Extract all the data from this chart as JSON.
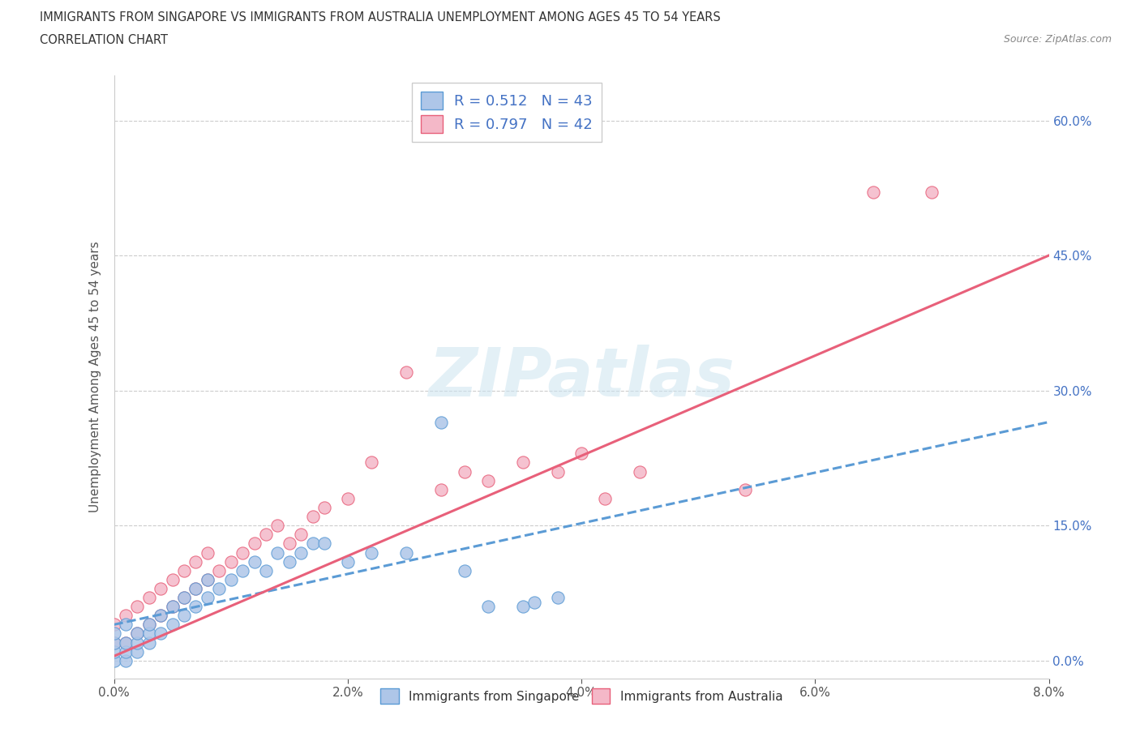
{
  "title_line1": "IMMIGRANTS FROM SINGAPORE VS IMMIGRANTS FROM AUSTRALIA UNEMPLOYMENT AMONG AGES 45 TO 54 YEARS",
  "title_line2": "CORRELATION CHART",
  "source_text": "Source: ZipAtlas.com",
  "ylabel": "Unemployment Among Ages 45 to 54 years",
  "x_ticks": [
    0.0,
    0.02,
    0.04,
    0.06,
    0.08
  ],
  "y_ticks": [
    0.0,
    0.15,
    0.3,
    0.45,
    0.6
  ],
  "x_min": 0.0,
  "x_max": 0.08,
  "y_min": -0.02,
  "y_max": 0.65,
  "R_singapore": 0.512,
  "N_singapore": 43,
  "R_australia": 0.797,
  "N_australia": 42,
  "color_singapore_fill": "#aec6e8",
  "color_singapore_edge": "#5b9bd5",
  "color_australia_fill": "#f4b8c8",
  "color_australia_edge": "#e8607a",
  "color_sing_line": "#5b9bd5",
  "color_aus_line": "#e8607a",
  "color_text_blue": "#4472c4",
  "watermark_text": "ZIPatlas",
  "sing_line_x0": 0.0,
  "sing_line_y0": 0.04,
  "sing_line_x1": 0.08,
  "sing_line_y1": 0.265,
  "aus_line_x0": 0.0,
  "aus_line_y0": 0.005,
  "aus_line_x1": 0.08,
  "aus_line_y1": 0.45,
  "sing_x": [
    0.0,
    0.0,
    0.0,
    0.0,
    0.001,
    0.001,
    0.001,
    0.001,
    0.002,
    0.002,
    0.002,
    0.003,
    0.003,
    0.003,
    0.004,
    0.004,
    0.005,
    0.005,
    0.006,
    0.006,
    0.007,
    0.007,
    0.008,
    0.008,
    0.009,
    0.01,
    0.011,
    0.012,
    0.013,
    0.014,
    0.015,
    0.016,
    0.017,
    0.018,
    0.02,
    0.022,
    0.025,
    0.028,
    0.03,
    0.032,
    0.035,
    0.036,
    0.038
  ],
  "sing_y": [
    0.0,
    0.01,
    0.02,
    0.03,
    0.0,
    0.01,
    0.02,
    0.04,
    0.01,
    0.02,
    0.03,
    0.02,
    0.03,
    0.04,
    0.03,
    0.05,
    0.04,
    0.06,
    0.05,
    0.07,
    0.06,
    0.08,
    0.07,
    0.09,
    0.08,
    0.09,
    0.1,
    0.11,
    0.1,
    0.12,
    0.11,
    0.12,
    0.13,
    0.13,
    0.11,
    0.12,
    0.12,
    0.265,
    0.1,
    0.06,
    0.06,
    0.065,
    0.07
  ],
  "aus_x": [
    0.0,
    0.0,
    0.001,
    0.001,
    0.002,
    0.002,
    0.003,
    0.003,
    0.004,
    0.004,
    0.005,
    0.005,
    0.006,
    0.006,
    0.007,
    0.007,
    0.008,
    0.008,
    0.009,
    0.01,
    0.011,
    0.012,
    0.013,
    0.014,
    0.015,
    0.016,
    0.017,
    0.018,
    0.02,
    0.022,
    0.025,
    0.028,
    0.03,
    0.032,
    0.035,
    0.038,
    0.04,
    0.042,
    0.045,
    0.054,
    0.065,
    0.07
  ],
  "aus_y": [
    0.02,
    0.04,
    0.02,
    0.05,
    0.03,
    0.06,
    0.04,
    0.07,
    0.05,
    0.08,
    0.06,
    0.09,
    0.07,
    0.1,
    0.08,
    0.11,
    0.09,
    0.12,
    0.1,
    0.11,
    0.12,
    0.13,
    0.14,
    0.15,
    0.13,
    0.14,
    0.16,
    0.17,
    0.18,
    0.22,
    0.32,
    0.19,
    0.21,
    0.2,
    0.22,
    0.21,
    0.23,
    0.18,
    0.21,
    0.19,
    0.52,
    0.52
  ]
}
